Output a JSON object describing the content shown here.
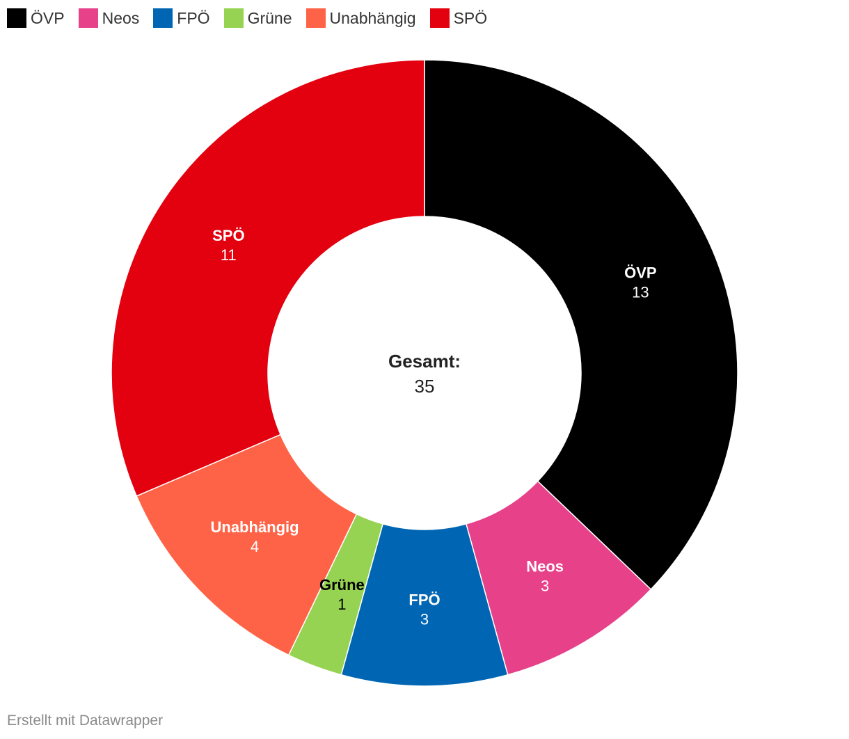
{
  "chart_data": {
    "type": "pie",
    "subtype": "donut",
    "categories": [
      "ÖVP",
      "Neos",
      "FPÖ",
      "Grüne",
      "Unabhängig",
      "SPÖ"
    ],
    "values": [
      13,
      3,
      3,
      1,
      4,
      11
    ],
    "colors": [
      "#000000",
      "#e7418a",
      "#0066b3",
      "#96d353",
      "#ff6347",
      "#e3000f"
    ],
    "label_colors": [
      "#ffffff",
      "#ffffff",
      "#ffffff",
      "#000000",
      "#ffffff",
      "#ffffff"
    ],
    "total_label": "Gesamt:",
    "total_value": "35",
    "legend_position": "top-left"
  },
  "footer": {
    "credit": "Erstellt mit Datawrapper"
  }
}
